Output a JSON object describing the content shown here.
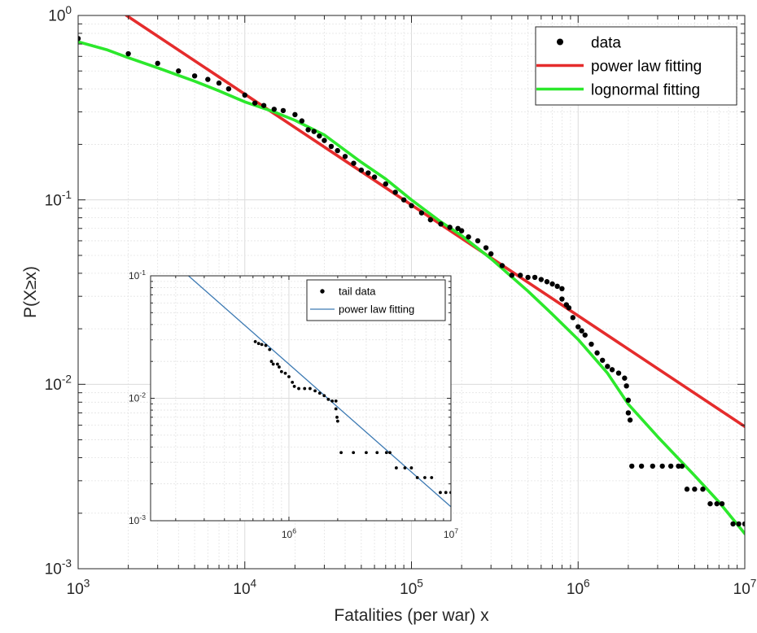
{
  "chart_data": [
    {
      "type": "scatter",
      "xlabel": "Fatalities (per war) x",
      "ylabel": "P(X≥x)",
      "x_scale": "log",
      "y_scale": "log",
      "xlim": [
        1000,
        10000000
      ],
      "ylim": [
        0.001,
        1
      ],
      "grid": true,
      "minor_grid": true,
      "legend_position": "top-right",
      "x_ticks": [
        {
          "value": 1000,
          "base": "10",
          "exp": "3"
        },
        {
          "value": 10000,
          "base": "10",
          "exp": "4"
        },
        {
          "value": 100000,
          "base": "10",
          "exp": "5"
        },
        {
          "value": 1000000,
          "base": "10",
          "exp": "6"
        },
        {
          "value": 10000000,
          "base": "10",
          "exp": "7"
        }
      ],
      "y_ticks": [
        {
          "value": 0.001,
          "base": "10",
          "exp": "-3"
        },
        {
          "value": 0.01,
          "base": "10",
          "exp": "-2"
        },
        {
          "value": 0.1,
          "base": "10",
          "exp": "-1"
        },
        {
          "value": 1,
          "base": "10",
          "exp": "0"
        }
      ],
      "series": [
        {
          "name": "data",
          "style": "markers",
          "color": "#000000",
          "points": [
            [
              1000,
              0.75
            ],
            [
              2000,
              0.62
            ],
            [
              3000,
              0.55
            ],
            [
              4000,
              0.5
            ],
            [
              5000,
              0.47
            ],
            [
              6000,
              0.45
            ],
            [
              7000,
              0.43
            ],
            [
              8000,
              0.4
            ],
            [
              10000,
              0.37
            ],
            [
              11500,
              0.335
            ],
            [
              13000,
              0.325
            ],
            [
              15000,
              0.31
            ],
            [
              17000,
              0.305
            ],
            [
              20000,
              0.29
            ],
            [
              22000,
              0.268
            ],
            [
              24000,
              0.24
            ],
            [
              26000,
              0.235
            ],
            [
              28000,
              0.222
            ],
            [
              30000,
              0.21
            ],
            [
              33000,
              0.195
            ],
            [
              36000,
              0.185
            ],
            [
              40000,
              0.172
            ],
            [
              45000,
              0.158
            ],
            [
              50000,
              0.145
            ],
            [
              55000,
              0.14
            ],
            [
              60000,
              0.133
            ],
            [
              70000,
              0.122
            ],
            [
              80000,
              0.11
            ],
            [
              90000,
              0.1
            ],
            [
              100000,
              0.093
            ],
            [
              115000,
              0.085
            ],
            [
              130000,
              0.078
            ],
            [
              150000,
              0.074
            ],
            [
              170000,
              0.071
            ],
            [
              190000,
              0.07
            ],
            [
              200000,
              0.068
            ],
            [
              220000,
              0.063
            ],
            [
              250000,
              0.06
            ],
            [
              280000,
              0.055
            ],
            [
              300000,
              0.051
            ],
            [
              350000,
              0.044
            ],
            [
              400000,
              0.039
            ],
            [
              450000,
              0.039
            ],
            [
              500000,
              0.038
            ],
            [
              550000,
              0.038
            ],
            [
              600000,
              0.037
            ],
            [
              650000,
              0.036
            ],
            [
              700000,
              0.035
            ],
            [
              750000,
              0.034
            ],
            [
              800000,
              0.033
            ],
            [
              800000,
              0.029
            ],
            [
              850000,
              0.027
            ],
            [
              880000,
              0.026
            ],
            [
              930000,
              0.023
            ],
            [
              1000000,
              0.0205
            ],
            [
              1050000,
              0.0195
            ],
            [
              1100000,
              0.0185
            ],
            [
              1200000,
              0.0165
            ],
            [
              1300000,
              0.0148
            ],
            [
              1400000,
              0.0135
            ],
            [
              1500000,
              0.0125
            ],
            [
              1600000,
              0.012
            ],
            [
              1750000,
              0.0115
            ],
            [
              1900000,
              0.0108
            ],
            [
              1950000,
              0.0098
            ],
            [
              2000000,
              0.0082
            ],
            [
              2000000,
              0.007
            ],
            [
              2050000,
              0.0064
            ],
            [
              2100000,
              0.0036
            ],
            [
              2400000,
              0.0036
            ],
            [
              2800000,
              0.0036
            ],
            [
              3200000,
              0.0036
            ],
            [
              3600000,
              0.0036
            ],
            [
              4000000,
              0.0036
            ],
            [
              4200000,
              0.0036
            ],
            [
              4500000,
              0.0027
            ],
            [
              5000000,
              0.0027
            ],
            [
              5600000,
              0.0027
            ],
            [
              6200000,
              0.00225
            ],
            [
              6800000,
              0.00225
            ],
            [
              7300000,
              0.00225
            ],
            [
              8500000,
              0.00175
            ],
            [
              9200000,
              0.00175
            ],
            [
              10000000,
              0.00175
            ]
          ]
        },
        {
          "name": "power law fitting",
          "style": "line",
          "color": "#e52c2c",
          "points": [
            [
              1950,
              1.0
            ],
            [
              10000000,
              0.0059
            ]
          ]
        },
        {
          "name": "lognormal fitting",
          "style": "line",
          "color": "#2ce82c",
          "points": [
            [
              1000,
              0.72
            ],
            [
              1500,
              0.65
            ],
            [
              2000,
              0.59
            ],
            [
              3000,
              0.52
            ],
            [
              5000,
              0.44
            ],
            [
              7000,
              0.39
            ],
            [
              10000,
              0.34
            ],
            [
              15000,
              0.3
            ],
            [
              20000,
              0.27
            ],
            [
              30000,
              0.225
            ],
            [
              50000,
              0.16
            ],
            [
              70000,
              0.13
            ],
            [
              100000,
              0.1
            ],
            [
              150000,
              0.076
            ],
            [
              200000,
              0.064
            ],
            [
              300000,
              0.048
            ],
            [
              500000,
              0.032
            ],
            [
              700000,
              0.024
            ],
            [
              1000000,
              0.0175
            ],
            [
              1500000,
              0.0115
            ],
            [
              2000000,
              0.0078
            ],
            [
              3000000,
              0.0052
            ],
            [
              5000000,
              0.0032
            ],
            [
              7000000,
              0.0023
            ],
            [
              10000000,
              0.00155
            ]
          ]
        }
      ]
    },
    {
      "type": "scatter",
      "x_scale": "log",
      "y_scale": "log",
      "xlim": [
        140000,
        10000000
      ],
      "ylim": [
        0.001,
        0.1
      ],
      "grid": true,
      "minor_grid": true,
      "legend_position": "top-right",
      "x_ticks": [
        {
          "value": 1000000,
          "base": "10",
          "exp": "6"
        },
        {
          "value": 10000000,
          "base": "10",
          "exp": "7"
        }
      ],
      "y_ticks": [
        {
          "value": 0.001,
          "base": "10",
          "exp": "-3"
        },
        {
          "value": 0.01,
          "base": "10",
          "exp": "-2"
        },
        {
          "value": 0.1,
          "base": "10",
          "exp": "-1"
        }
      ],
      "series": [
        {
          "name": "tail data",
          "style": "markers",
          "color": "#000000",
          "points": [
            [
              620000,
              0.029
            ],
            [
              650000,
              0.028
            ],
            [
              680000,
              0.0275
            ],
            [
              720000,
              0.027
            ],
            [
              760000,
              0.025
            ],
            [
              780000,
              0.02
            ],
            [
              800000,
              0.019
            ],
            [
              850000,
              0.019
            ],
            [
              870000,
              0.018
            ],
            [
              900000,
              0.0165
            ],
            [
              950000,
              0.016
            ],
            [
              1000000,
              0.015
            ],
            [
              1050000,
              0.0135
            ],
            [
              1080000,
              0.0125
            ],
            [
              1150000,
              0.012
            ],
            [
              1250000,
              0.012
            ],
            [
              1350000,
              0.012
            ],
            [
              1450000,
              0.0115
            ],
            [
              1550000,
              0.011
            ],
            [
              1650000,
              0.0105
            ],
            [
              1750000,
              0.0098
            ],
            [
              1850000,
              0.0095
            ],
            [
              1950000,
              0.0095
            ],
            [
              1950000,
              0.0082
            ],
            [
              1980000,
              0.007
            ],
            [
              2000000,
              0.0065
            ],
            [
              2100000,
              0.0036
            ],
            [
              2500000,
              0.0036
            ],
            [
              3000000,
              0.0036
            ],
            [
              3500000,
              0.0036
            ],
            [
              4000000,
              0.0036
            ],
            [
              4200000,
              0.0036
            ],
            [
              4600000,
              0.0027
            ],
            [
              5200000,
              0.0027
            ],
            [
              5700000,
              0.0027
            ],
            [
              6200000,
              0.00225
            ],
            [
              6900000,
              0.00225
            ],
            [
              7600000,
              0.00225
            ],
            [
              8600000,
              0.0017
            ],
            [
              9300000,
              0.0017
            ],
            [
              10000000,
              0.0017
            ]
          ]
        },
        {
          "name": "power law fitting",
          "style": "line",
          "color": "#3d7ab3",
          "points": [
            [
              240000,
              0.1
            ],
            [
              10000000,
              0.0013
            ]
          ]
        }
      ]
    }
  ]
}
